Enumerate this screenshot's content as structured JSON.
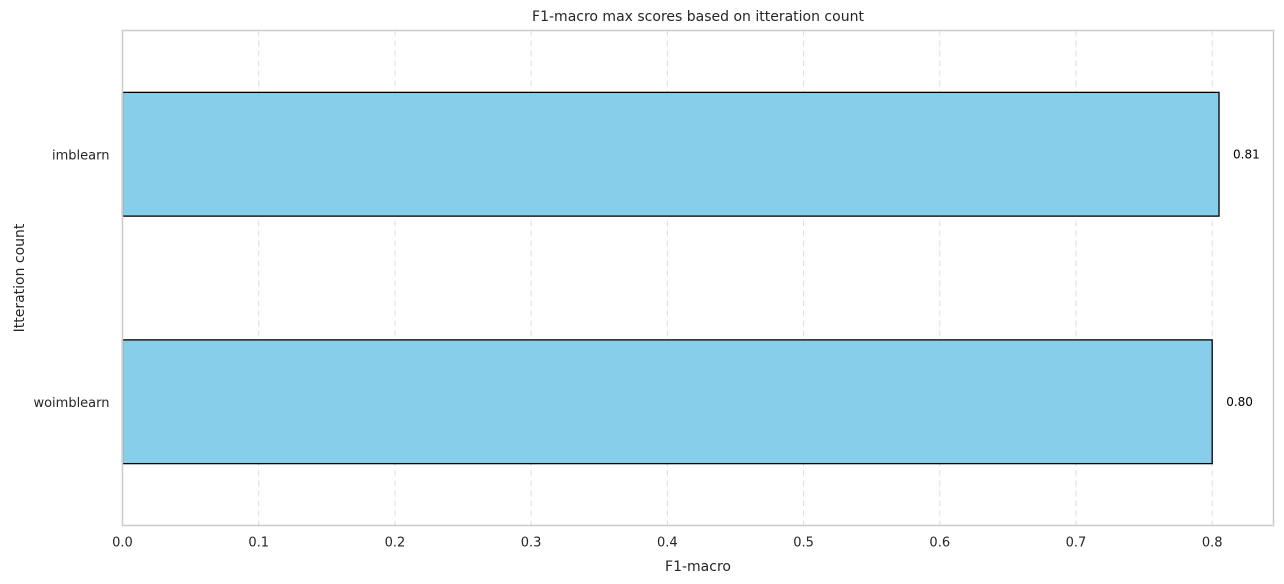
{
  "chart_data": {
    "type": "bar",
    "orientation": "horizontal",
    "title": "F1-macro max scores based on itteration count",
    "xlabel": "F1-macro",
    "ylabel": "Itteration count",
    "categories": [
      "imblearn",
      "woimblearn"
    ],
    "values": [
      0.805,
      0.8
    ],
    "data_labels": [
      "0.81",
      "0.80"
    ],
    "xlim": [
      0,
      0.845
    ],
    "xticks": [
      0.0,
      0.1,
      0.2,
      0.3,
      0.4,
      0.5,
      0.6,
      0.7,
      0.8
    ],
    "xtick_labels": [
      "0.0",
      "0.1",
      "0.2",
      "0.3",
      "0.4",
      "0.5",
      "0.6",
      "0.7",
      "0.8"
    ],
    "grid": "x-dashed",
    "legend": "none",
    "colors": {
      "bar_fill": "#87CEEB",
      "bar_edge": "#000000",
      "grid": "#dddddd",
      "axes_edge": "#cccccc",
      "text": "#262626"
    }
  }
}
